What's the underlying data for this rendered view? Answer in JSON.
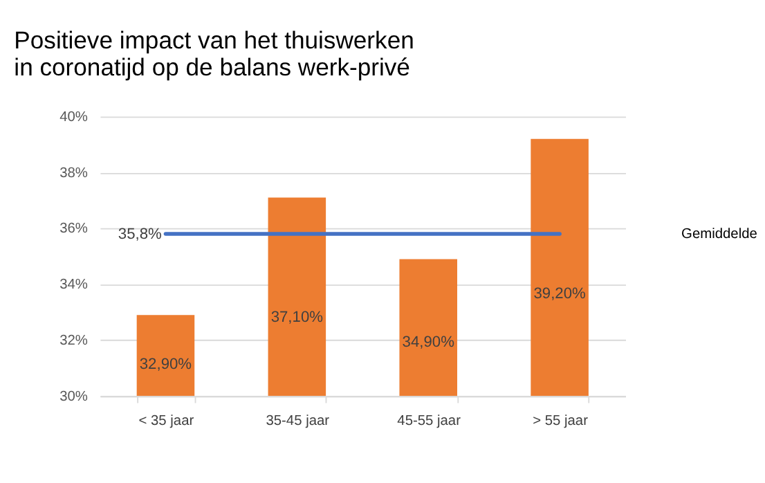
{
  "chart_data": {
    "type": "bar",
    "title": [
      "Positieve impact van het thuiswerken",
      "in coronatijd op de balans werk-privé"
    ],
    "categories": [
      "< 35 jaar",
      "35-45 jaar",
      "45-55 jaar",
      "> 55 jaar"
    ],
    "series": [
      {
        "color": "#ed7d31",
        "values": [
          32.9,
          37.1,
          34.9,
          39.2
        ],
        "value_labels": [
          "32,90%",
          "37,10%",
          "34,90%",
          "39,20%"
        ]
      },
      {
        "type": "line",
        "name": "Gemiddelde",
        "color": "#4472c4",
        "values": [
          35.8,
          35.8,
          35.8,
          35.8
        ],
        "value_labels": [
          "35,8%",
          null,
          null,
          null
        ]
      }
    ],
    "ylim": [
      30,
      40
    ],
    "yticks": [
      {
        "value": 30,
        "label": "30%"
      },
      {
        "value": 32,
        "label": "32%"
      },
      {
        "value": 34,
        "label": "34%"
      },
      {
        "value": 36,
        "label": "36%"
      },
      {
        "value": 38,
        "label": "38%"
      },
      {
        "value": 40,
        "label": "40%"
      }
    ],
    "grid": "y"
  }
}
